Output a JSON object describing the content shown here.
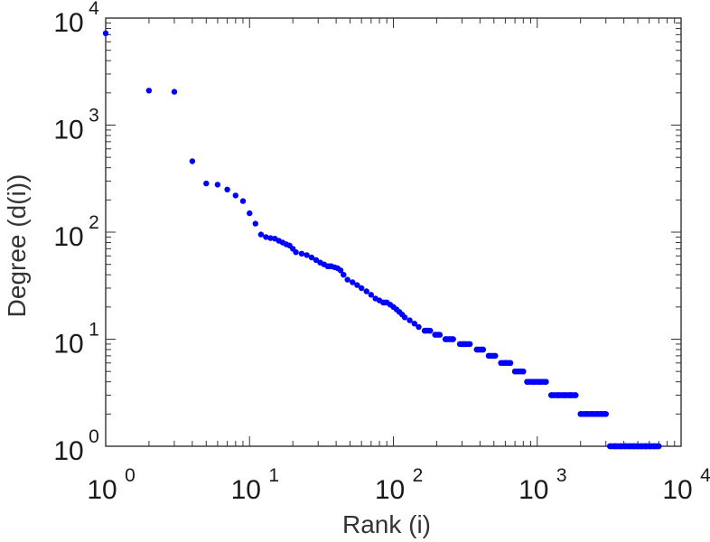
{
  "chart_data": {
    "type": "scatter",
    "title": "",
    "xlabel": "Rank (i)",
    "ylabel": "Degree (d(i))",
    "xscale": "log",
    "yscale": "log",
    "xlim": [
      1,
      10000
    ],
    "ylim": [
      1,
      10000
    ],
    "x_ticks": [
      {
        "base": "10",
        "exp": "0"
      },
      {
        "base": "10",
        "exp": "1"
      },
      {
        "base": "10",
        "exp": "2"
      },
      {
        "base": "10",
        "exp": "3"
      },
      {
        "base": "10",
        "exp": "4"
      }
    ],
    "y_ticks": [
      {
        "base": "10",
        "exp": "0"
      },
      {
        "base": "10",
        "exp": "1"
      },
      {
        "base": "10",
        "exp": "2"
      },
      {
        "base": "10",
        "exp": "3"
      },
      {
        "base": "10",
        "exp": "4"
      }
    ],
    "grid": false,
    "marker_color": "#0000ff",
    "points": [
      [
        1,
        7200
      ],
      [
        2,
        2100
      ],
      [
        3,
        2050
      ],
      [
        4,
        460
      ],
      [
        5,
        285
      ],
      [
        6,
        278
      ],
      [
        7,
        250
      ],
      [
        8,
        220
      ],
      [
        9,
        195
      ],
      [
        10,
        150
      ],
      [
        11,
        120
      ],
      [
        12,
        95
      ],
      [
        13,
        90
      ],
      [
        14,
        88
      ],
      [
        15,
        87
      ],
      [
        16,
        83
      ],
      [
        17,
        80
      ],
      [
        18,
        77
      ],
      [
        19,
        75
      ],
      [
        20,
        70
      ],
      [
        21,
        65
      ],
      [
        23,
        63
      ],
      [
        25,
        61
      ],
      [
        27,
        58
      ],
      [
        29,
        55
      ],
      [
        31,
        52
      ],
      [
        33,
        50
      ],
      [
        35,
        48
      ],
      [
        37,
        48
      ],
      [
        39,
        47
      ],
      [
        41,
        46
      ],
      [
        43,
        44
      ],
      [
        45,
        40
      ],
      [
        48,
        36
      ],
      [
        52,
        34
      ],
      [
        56,
        32
      ],
      [
        60,
        30
      ],
      [
        65,
        28
      ],
      [
        70,
        26
      ],
      [
        75,
        24
      ],
      [
        80,
        23
      ],
      [
        85,
        22
      ],
      [
        90,
        22
      ],
      [
        95,
        21
      ],
      [
        100,
        20
      ],
      [
        105,
        19
      ],
      [
        110,
        18
      ],
      [
        115,
        17
      ],
      [
        120,
        16
      ],
      [
        130,
        15
      ],
      [
        140,
        14
      ],
      [
        150,
        13
      ],
      [
        165,
        12
      ],
      [
        180,
        12
      ],
      [
        195,
        11
      ],
      [
        210,
        11
      ],
      [
        230,
        10
      ],
      [
        260,
        10
      ],
      [
        290,
        9
      ],
      [
        310,
        9
      ],
      [
        340,
        9
      ],
      [
        380,
        8
      ],
      [
        420,
        8
      ],
      [
        460,
        7
      ],
      [
        510,
        7
      ],
      [
        560,
        6
      ],
      [
        600,
        6
      ],
      [
        650,
        6
      ],
      [
        700,
        5
      ],
      [
        800,
        5
      ],
      [
        850,
        4
      ],
      [
        950,
        4
      ],
      [
        1050,
        4
      ],
      [
        1150,
        4
      ],
      [
        1250,
        3
      ],
      [
        1400,
        3
      ],
      [
        1550,
        3
      ],
      [
        1700,
        3
      ],
      [
        1850,
        3
      ],
      [
        2000,
        2
      ],
      [
        2200,
        2
      ],
      [
        2400,
        2
      ],
      [
        2600,
        2
      ],
      [
        2800,
        2
      ],
      [
        3000,
        2
      ],
      [
        3200,
        1
      ],
      [
        3500,
        1
      ],
      [
        3800,
        1
      ],
      [
        4100,
        1
      ],
      [
        4400,
        1
      ],
      [
        4700,
        1
      ],
      [
        5000,
        1
      ],
      [
        5300,
        1
      ],
      [
        5700,
        1
      ],
      [
        6100,
        1
      ],
      [
        6500,
        1
      ],
      [
        7000,
        1
      ]
    ]
  }
}
